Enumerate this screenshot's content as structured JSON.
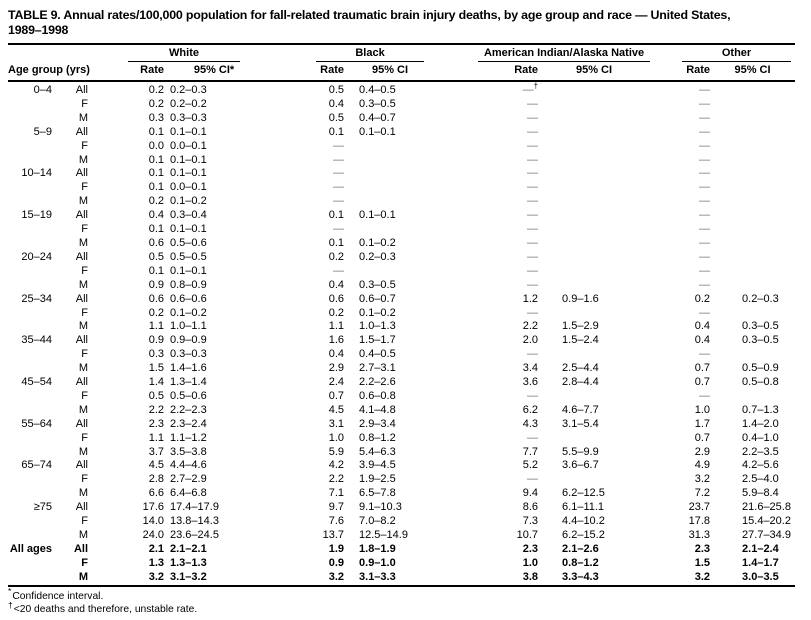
{
  "title": {
    "line1": "TABLE 9. Annual rates/100,000 population for fall-related traumatic brain injury deaths, by age group and race — United States,",
    "line2": "1989–1998"
  },
  "table": {
    "age_col_header": "Age group (yrs)",
    "groups": [
      {
        "label": "White",
        "rate_header": "Rate",
        "ci_header": "95% CI*"
      },
      {
        "label": "Black",
        "rate_header": "Rate",
        "ci_header": "95% CI"
      },
      {
        "label": "American Indian/Alaska Native",
        "rate_header": "Rate",
        "ci_header": "95% CI"
      },
      {
        "label": "Other",
        "rate_header": "Rate",
        "ci_header": "95% CI"
      }
    ],
    "rows": [
      {
        "age": "0–4",
        "sex": "All",
        "bold": false,
        "cells": [
          "0.2",
          "0.2–0.3",
          "0.5",
          "0.4–0.5",
          "—†",
          "",
          "—",
          ""
        ]
      },
      {
        "age": "",
        "sex": "F",
        "bold": false,
        "cells": [
          "0.2",
          "0.2–0.2",
          "0.4",
          "0.3–0.5",
          "—",
          "",
          "—",
          ""
        ]
      },
      {
        "age": "",
        "sex": "M",
        "bold": false,
        "cells": [
          "0.3",
          "0.3–0.3",
          "0.5",
          "0.4–0.7",
          "—",
          "",
          "—",
          ""
        ]
      },
      {
        "age": "5–9",
        "sex": "All",
        "bold": false,
        "cells": [
          "0.1",
          "0.1–0.1",
          "0.1",
          "0.1–0.1",
          "—",
          "",
          "—",
          ""
        ]
      },
      {
        "age": "",
        "sex": "F",
        "bold": false,
        "cells": [
          "0.0",
          "0.0–0.1",
          "—",
          "",
          "—",
          "",
          "—",
          ""
        ]
      },
      {
        "age": "",
        "sex": "M",
        "bold": false,
        "cells": [
          "0.1",
          "0.1–0.1",
          "—",
          "",
          "—",
          "",
          "—",
          ""
        ]
      },
      {
        "age": "10–14",
        "sex": "All",
        "bold": false,
        "cells": [
          "0.1",
          "0.1–0.1",
          "—",
          "",
          "—",
          "",
          "—",
          ""
        ]
      },
      {
        "age": "",
        "sex": "F",
        "bold": false,
        "cells": [
          "0.1",
          "0.0–0.1",
          "—",
          "",
          "—",
          "",
          "—",
          ""
        ]
      },
      {
        "age": "",
        "sex": "M",
        "bold": false,
        "cells": [
          "0.2",
          "0.1–0.2",
          "—",
          "",
          "—",
          "",
          "—",
          ""
        ]
      },
      {
        "age": "15–19",
        "sex": "All",
        "bold": false,
        "cells": [
          "0.4",
          "0.3–0.4",
          "0.1",
          "0.1–0.1",
          "—",
          "",
          "—",
          ""
        ]
      },
      {
        "age": "",
        "sex": "F",
        "bold": false,
        "cells": [
          "0.1",
          "0.1–0.1",
          "—",
          "",
          "—",
          "",
          "—",
          ""
        ]
      },
      {
        "age": "",
        "sex": "M",
        "bold": false,
        "cells": [
          "0.6",
          "0.5–0.6",
          "0.1",
          "0.1–0.2",
          "—",
          "",
          "—",
          ""
        ]
      },
      {
        "age": "20–24",
        "sex": "All",
        "bold": false,
        "cells": [
          "0.5",
          "0.5–0.5",
          "0.2",
          "0.2–0.3",
          "—",
          "",
          "—",
          ""
        ]
      },
      {
        "age": "",
        "sex": "F",
        "bold": false,
        "cells": [
          "0.1",
          "0.1–0.1",
          "—",
          "",
          "—",
          "",
          "—",
          ""
        ]
      },
      {
        "age": "",
        "sex": "M",
        "bold": false,
        "cells": [
          "0.9",
          "0.8–0.9",
          "0.4",
          "0.3–0.5",
          "—",
          "",
          "—",
          ""
        ]
      },
      {
        "age": "25–34",
        "sex": "All",
        "bold": false,
        "cells": [
          "0.6",
          "0.6–0.6",
          "0.6",
          "0.6–0.7",
          "1.2",
          "0.9–1.6",
          "0.2",
          "0.2–0.3"
        ]
      },
      {
        "age": "",
        "sex": "F",
        "bold": false,
        "cells": [
          "0.2",
          "0.1–0.2",
          "0.2",
          "0.1–0.2",
          "—",
          "",
          "—",
          ""
        ]
      },
      {
        "age": "",
        "sex": "M",
        "bold": false,
        "cells": [
          "1.1",
          "1.0–1.1",
          "1.1",
          "1.0–1.3",
          "2.2",
          "1.5–2.9",
          "0.4",
          "0.3–0.5"
        ]
      },
      {
        "age": "35–44",
        "sex": "All",
        "bold": false,
        "cells": [
          "0.9",
          "0.9–0.9",
          "1.6",
          "1.5–1.7",
          "2.0",
          "1.5–2.4",
          "0.4",
          "0.3–0.5"
        ]
      },
      {
        "age": "",
        "sex": "F",
        "bold": false,
        "cells": [
          "0.3",
          "0.3–0.3",
          "0.4",
          "0.4–0.5",
          "—",
          "",
          "—",
          ""
        ]
      },
      {
        "age": "",
        "sex": "M",
        "bold": false,
        "cells": [
          "1.5",
          "1.4–1.6",
          "2.9",
          "2.7–3.1",
          "3.4",
          "2.5–4.4",
          "0.7",
          "0.5–0.9"
        ]
      },
      {
        "age": "45–54",
        "sex": "All",
        "bold": false,
        "cells": [
          "1.4",
          "1.3–1.4",
          "2.4",
          "2.2–2.6",
          "3.6",
          "2.8–4.4",
          "0.7",
          "0.5–0.8"
        ]
      },
      {
        "age": "",
        "sex": "F",
        "bold": false,
        "cells": [
          "0.5",
          "0.5–0.6",
          "0.7",
          "0.6–0.8",
          "—",
          "",
          "—",
          ""
        ]
      },
      {
        "age": "",
        "sex": "M",
        "bold": false,
        "cells": [
          "2.2",
          "2.2–2.3",
          "4.5",
          "4.1–4.8",
          "6.2",
          "4.6–7.7",
          "1.0",
          "0.7–1.3"
        ]
      },
      {
        "age": "55–64",
        "sex": "All",
        "bold": false,
        "cells": [
          "2.3",
          "2.3–2.4",
          "3.1",
          "2.9–3.4",
          "4.3",
          "3.1–5.4",
          "1.7",
          "1.4–2.0"
        ]
      },
      {
        "age": "",
        "sex": "F",
        "bold": false,
        "cells": [
          "1.1",
          "1.1–1.2",
          "1.0",
          "0.8–1.2",
          "—",
          "",
          "0.7",
          "0.4–1.0"
        ]
      },
      {
        "age": "",
        "sex": "M",
        "bold": false,
        "cells": [
          "3.7",
          "3.5–3.8",
          "5.9",
          "5.4–6.3",
          "7.7",
          "5.5–9.9",
          "2.9",
          "2.2–3.5"
        ]
      },
      {
        "age": "65–74",
        "sex": "All",
        "bold": false,
        "cells": [
          "4.5",
          "4.4–4.6",
          "4.2",
          "3.9–4.5",
          "5.2",
          "3.6–6.7",
          "4.9",
          "4.2–5.6"
        ]
      },
      {
        "age": "",
        "sex": "F",
        "bold": false,
        "cells": [
          "2.8",
          "2.7–2.9",
          "2.2",
          "1.9–2.5",
          "—",
          "",
          "3.2",
          "2.5–4.0"
        ]
      },
      {
        "age": "",
        "sex": "M",
        "bold": false,
        "cells": [
          "6.6",
          "6.4–6.8",
          "7.1",
          "6.5–7.8",
          "9.4",
          "6.2–12.5",
          "7.2",
          "5.9–8.4"
        ]
      },
      {
        "age": "≥75",
        "sex": "All",
        "bold": false,
        "cells": [
          "17.6",
          "17.4–17.9",
          "9.7",
          "9.1–10.3",
          "8.6",
          "6.1–11.1",
          "23.7",
          "21.6–25.8"
        ]
      },
      {
        "age": "",
        "sex": "F",
        "bold": false,
        "cells": [
          "14.0",
          "13.8–14.3",
          "7.6",
          "7.0–8.2",
          "7.3",
          "4.4–10.2",
          "17.8",
          "15.4–20.2"
        ]
      },
      {
        "age": "",
        "sex": "M",
        "bold": false,
        "cells": [
          "24.0",
          "23.6–24.5",
          "13.7",
          "12.5–14.9",
          "10.7",
          "6.2–15.2",
          "31.3",
          "27.7–34.9"
        ]
      },
      {
        "age": "All ages",
        "sex": "All",
        "bold": true,
        "cells": [
          "2.1",
          "2.1–2.1",
          "1.9",
          "1.8–1.9",
          "2.3",
          "2.1–2.6",
          "2.3",
          "2.1–2.4"
        ]
      },
      {
        "age": "",
        "sex": "F",
        "bold": true,
        "cells": [
          "1.3",
          "1.3–1.3",
          "0.9",
          "0.9–1.0",
          "1.0",
          "0.8–1.2",
          "1.5",
          "1.4–1.7"
        ]
      },
      {
        "age": "",
        "sex": "M",
        "bold": true,
        "cells": [
          "3.2",
          "3.1–3.2",
          "3.2",
          "3.1–3.3",
          "3.8",
          "3.3–4.3",
          "3.2",
          "3.0–3.5"
        ]
      }
    ]
  },
  "footnotes": [
    {
      "marker": "*",
      "text": "Confidence interval."
    },
    {
      "marker": "†",
      "text": "<20 deaths and therefore, unstable rate."
    }
  ]
}
